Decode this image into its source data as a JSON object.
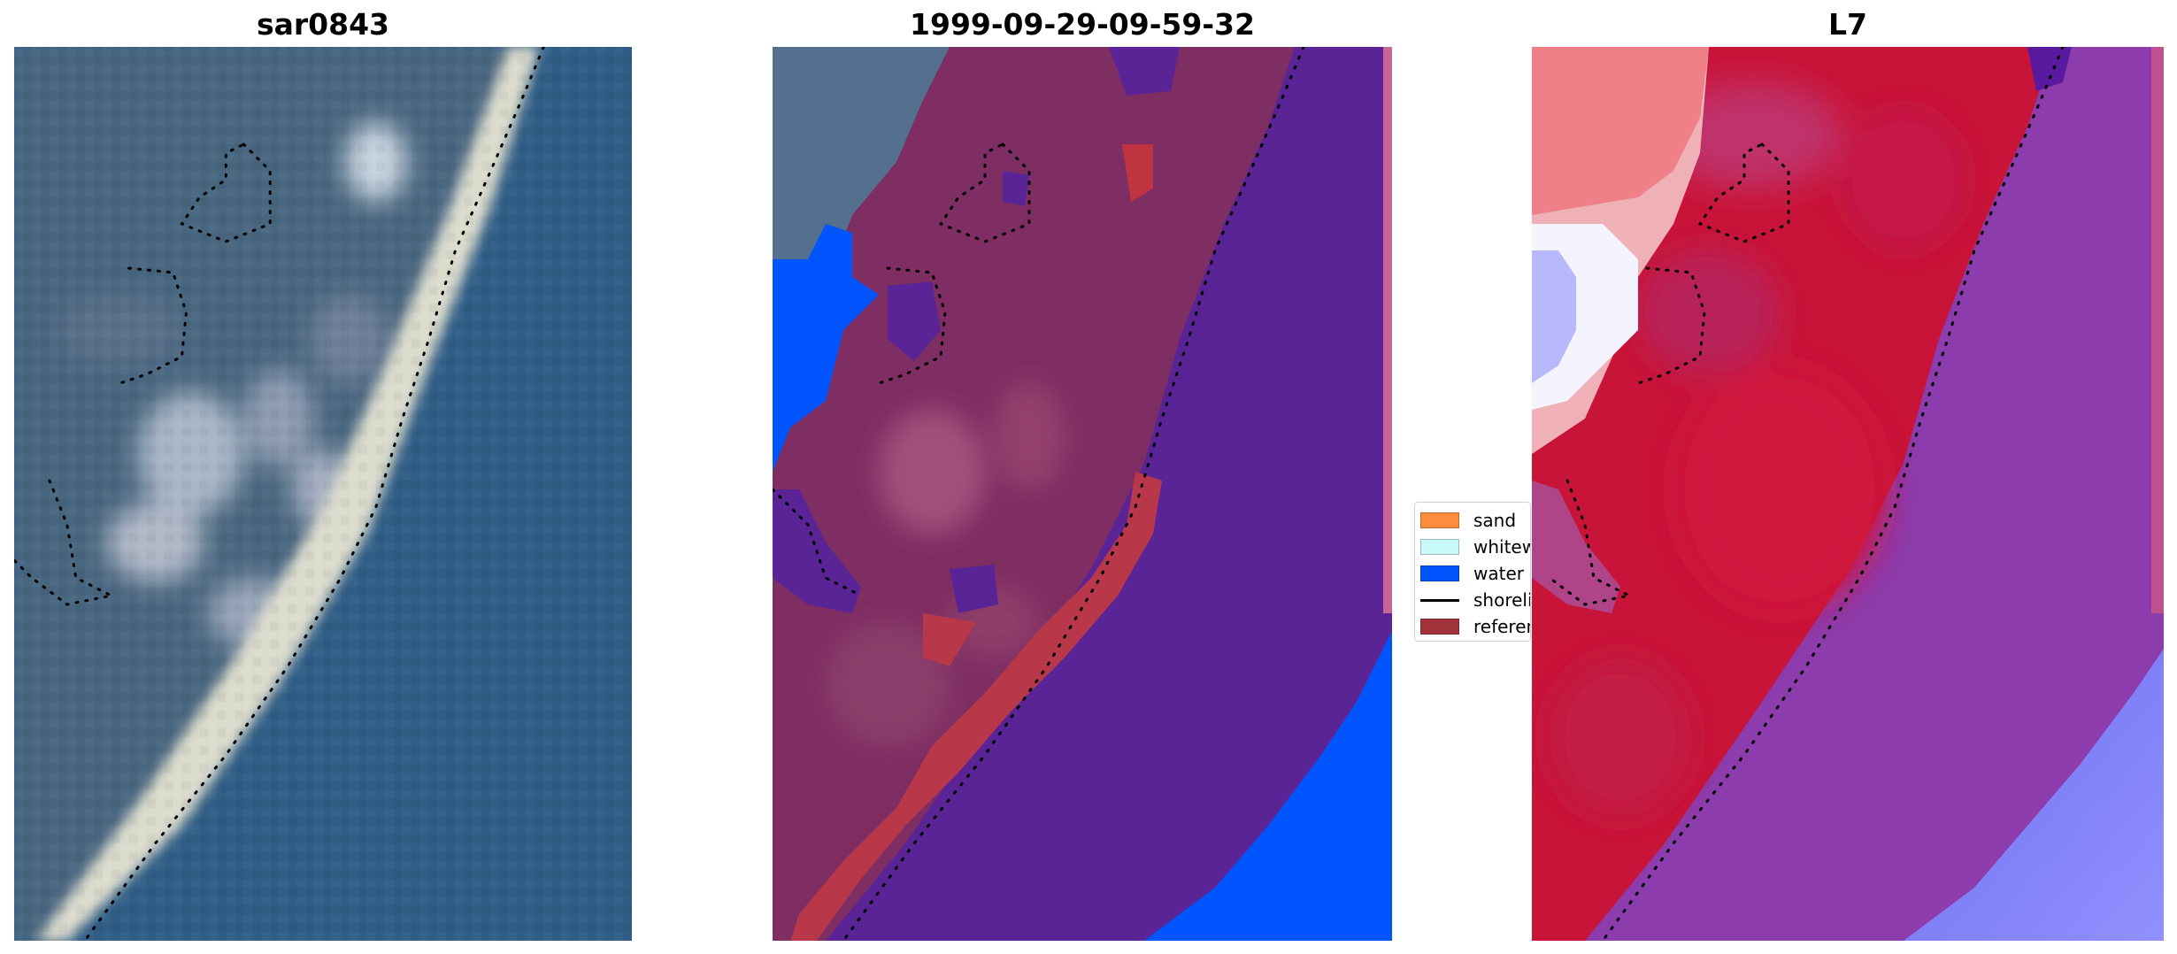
{
  "panels": [
    {
      "title": "sar0843"
    },
    {
      "title": "1999-09-29-09-59-32"
    },
    {
      "title": "L7"
    }
  ],
  "legend": {
    "items": [
      {
        "label": "sand",
        "color": "#ff8c3c",
        "kind": "patch"
      },
      {
        "label": "whitewater",
        "color": "#c8fafa",
        "kind": "patch"
      },
      {
        "label": "water",
        "color": "#0055ff",
        "kind": "patch"
      },
      {
        "label": "shoreline",
        "color": "#000000",
        "kind": "line"
      },
      {
        "label": "reference shoreline",
        "color": "#a0343a",
        "kind": "patch"
      }
    ]
  },
  "colors": {
    "ocean": "#2f5d86",
    "land": "#4a6680",
    "beach": "#dcdccd",
    "class_overlay": "#5a2496",
    "class_land": "#7e2e62",
    "class_water": "#0055ff",
    "class_reference": "#b8384a",
    "index_red": "#c81438",
    "index_purple": "#8c3cac",
    "index_blue": "#8080ff"
  }
}
